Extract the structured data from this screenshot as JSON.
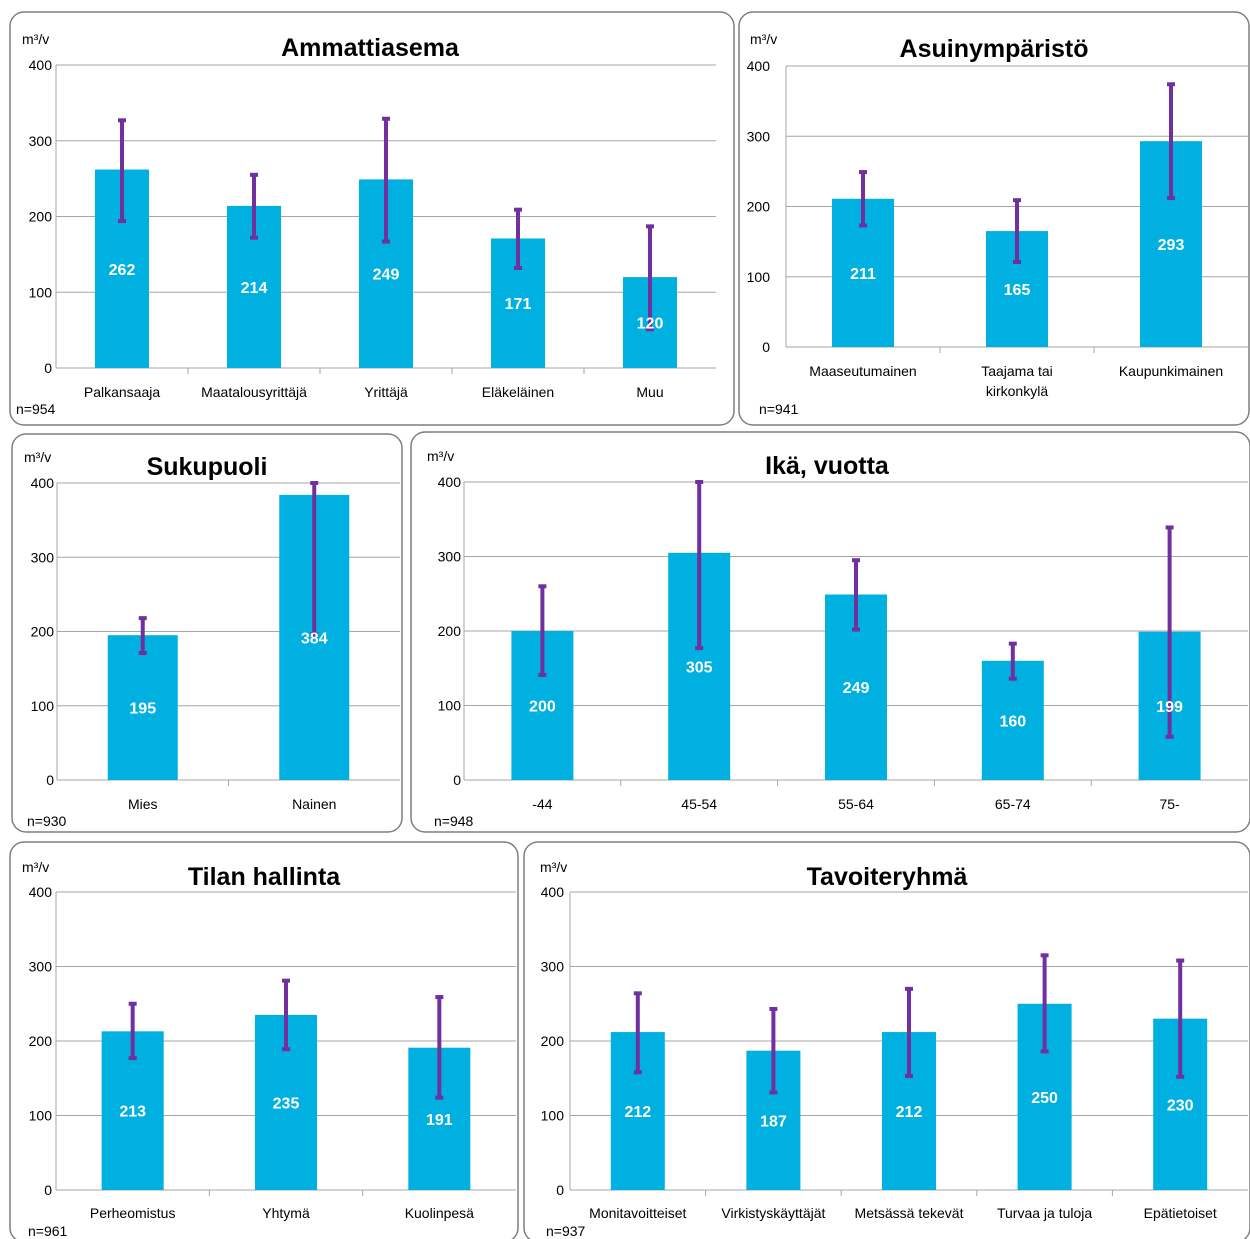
{
  "colors": {
    "bar": "#00b0e0",
    "error_bar": "#7030a0",
    "frame": "#7f7f7f",
    "grid": "#a6a6a6"
  },
  "chart_data": [
    {
      "type": "bar",
      "title": "Ammattiasema",
      "ylabel": "m³/v",
      "ylim": [
        0,
        400
      ],
      "yticks": [
        "0",
        "100",
        "200",
        "300",
        "400"
      ],
      "n": "n=954",
      "categories": [
        "Palkansaaja",
        "Maatalousyrittäjä",
        "Yrittäjä",
        "Eläkeläinen",
        "Muu"
      ],
      "values": [
        262,
        214,
        249,
        171,
        120
      ],
      "labels": [
        "262",
        "214",
        "249",
        "171",
        "120"
      ],
      "error_low": [
        194,
        172,
        167,
        132,
        51
      ],
      "error_high": [
        327,
        255,
        329,
        209,
        187
      ]
    },
    {
      "type": "bar",
      "title": "Asuinympäristö",
      "ylabel": "m³/v",
      "ylim": [
        0,
        400
      ],
      "yticks": [
        "0",
        "100",
        "200",
        "300",
        "400"
      ],
      "n": "n=941",
      "categories": [
        "Maaseutumainen",
        "Taajama tai kirkonkylä",
        "Kaupunkimainen"
      ],
      "category_lines": [
        [
          "Maaseutumainen"
        ],
        [
          "Taajama tai",
          "kirkonkylä"
        ],
        [
          "Kaupunkimainen"
        ]
      ],
      "values": [
        211,
        165,
        293
      ],
      "labels": [
        "211",
        "165",
        "293"
      ],
      "error_low": [
        173,
        121,
        212
      ],
      "error_high": [
        249,
        209,
        374
      ]
    },
    {
      "type": "bar",
      "title": "Sukupuoli",
      "ylabel": "m³/v",
      "ylim": [
        0,
        400
      ],
      "yticks": [
        "0",
        "100",
        "200",
        "300",
        "400"
      ],
      "n": "n=930",
      "categories": [
        "Mies",
        "Nainen"
      ],
      "values": [
        195,
        384
      ],
      "labels": [
        "195",
        "384"
      ],
      "error_low": [
        171,
        196
      ],
      "error_high": [
        218,
        400
      ]
    },
    {
      "type": "bar",
      "title": "Ikä, vuotta",
      "ylabel": "m³/v",
      "ylim": [
        0,
        400
      ],
      "yticks": [
        "0",
        "100",
        "200",
        "300",
        "400"
      ],
      "n": "n=948",
      "categories": [
        "-44",
        "45-54",
        "55-64",
        "65-74",
        "75-"
      ],
      "values": [
        200,
        305,
        249,
        160,
        199
      ],
      "labels": [
        "200",
        "305",
        "249",
        "160",
        "199"
      ],
      "error_low": [
        141,
        177,
        202,
        136,
        58
      ],
      "error_high": [
        260,
        400,
        295,
        183,
        339
      ]
    },
    {
      "type": "bar",
      "title": "Tilan hallinta",
      "ylabel": "m³/v",
      "ylim": [
        0,
        400
      ],
      "yticks": [
        "0",
        "100",
        "200",
        "300",
        "400"
      ],
      "n": "n=961",
      "categories": [
        "Perheomistus",
        "Yhtymä",
        "Kuolinpesä"
      ],
      "values": [
        213,
        235,
        191
      ],
      "labels": [
        "213",
        "235",
        "191"
      ],
      "error_low": [
        177,
        189,
        124
      ],
      "error_high": [
        250,
        281,
        259
      ]
    },
    {
      "type": "bar",
      "title": "Tavoiteryhmä",
      "ylabel": "m³/v",
      "ylim": [
        0,
        400
      ],
      "yticks": [
        "0",
        "100",
        "200",
        "300",
        "400"
      ],
      "n": "n=937",
      "categories": [
        "Monitavoitteiset",
        "Virkistyskäyttäjät",
        "Metsässä tekevät",
        "Turvaa ja tuloja",
        "Epätietoiset"
      ],
      "values": [
        212,
        187,
        212,
        250,
        230
      ],
      "labels": [
        "212",
        "187",
        "212",
        "250",
        "230"
      ],
      "error_low": [
        158,
        131,
        153,
        186,
        152
      ],
      "error_high": [
        264,
        243,
        270,
        315,
        308
      ]
    }
  ]
}
